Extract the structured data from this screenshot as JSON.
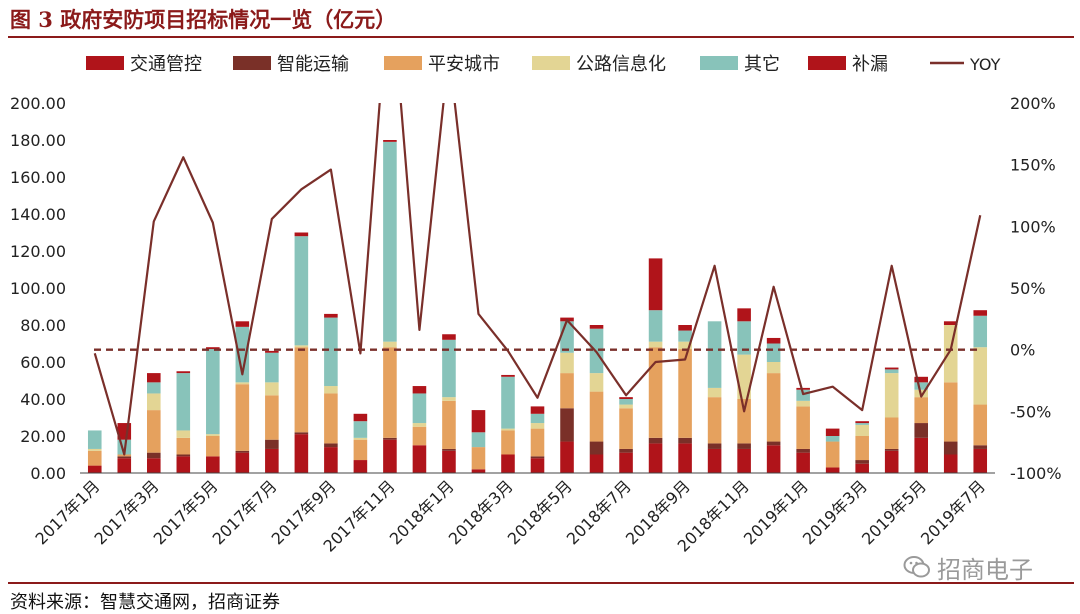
{
  "title": "图 3  政府安防项目招标情况一览（亿元）",
  "source": "资料来源：智慧交通网，招商证券",
  "watermark": {
    "text": "招商电子",
    "icon": "wechat-icon"
  },
  "colors": {
    "title": "#8B1A1A",
    "traffic": "#B0141A",
    "smart_transport": "#7A3028",
    "safe_city": "#E5A15E",
    "highway_it": "#E3D594",
    "other": "#88C3BA",
    "supplement": "#B0141A",
    "yoy": "#7A2F2A",
    "zero_line": "#7A2F2A"
  },
  "chart_data": {
    "type": "bar",
    "stacked": true,
    "title": "政府安防项目招标情况一览（亿元）",
    "legend_position": "top",
    "grid": false,
    "categories": [
      "2017年1月",
      "2017年2月",
      "2017年3月",
      "2017年4月",
      "2017年5月",
      "2017年6月",
      "2017年7月",
      "2017年8月",
      "2017年9月",
      "2017年10月",
      "2017年11月",
      "2017年12月",
      "2018年1月",
      "2018年2月",
      "2018年3月",
      "2018年4月",
      "2018年5月",
      "2018年6月",
      "2018年7月",
      "2018年8月",
      "2018年9月",
      "2018年10月",
      "2018年11月",
      "2018年12月",
      "2019年1月",
      "2019年2月",
      "2019年3月",
      "2019年4月",
      "2019年5月",
      "2019年6月",
      "2019年7月"
    ],
    "x_tick_labels": [
      "2017年1月",
      "2017年3月",
      "2017年5月",
      "2017年7月",
      "2017年9月",
      "2017年11月",
      "2018年1月",
      "2018年3月",
      "2018年5月",
      "2018年7月",
      "2018年9月",
      "2018年11月",
      "2019年1月",
      "2019年3月",
      "2019年5月",
      "2019年7月"
    ],
    "y_left": {
      "min": 0,
      "max": 200,
      "step": 20,
      "tick_labels": [
        "0.00",
        "20.00",
        "40.00",
        "60.00",
        "80.00",
        "100.00",
        "120.00",
        "140.00",
        "160.00",
        "180.00",
        "200.00"
      ]
    },
    "y_right": {
      "min": -100,
      "max": 200,
      "step": 50,
      "tick_labels": [
        "-100%",
        "-50%",
        "0%",
        "50%",
        "100%",
        "150%",
        "200%"
      ]
    },
    "series": [
      {
        "name": "交通管控",
        "values": [
          4,
          8,
          8,
          9,
          9,
          11,
          13,
          21,
          14,
          7,
          18,
          15,
          12,
          2,
          10,
          8,
          17,
          10,
          11,
          16,
          16,
          13,
          13,
          15,
          11,
          3,
          5,
          12,
          19,
          10,
          13
        ]
      },
      {
        "name": "智能运输",
        "values": [
          0,
          1,
          3,
          1,
          0,
          1,
          5,
          1,
          2,
          0,
          1,
          0,
          1,
          0,
          0,
          1,
          18,
          7,
          2,
          3,
          3,
          3,
          3,
          2,
          2,
          0,
          2,
          1,
          8,
          7,
          2
        ]
      },
      {
        "name": "平安城市",
        "values": [
          8,
          1,
          23,
          9,
          11,
          36,
          24,
          46,
          27,
          11,
          49,
          10,
          26,
          12,
          13,
          15,
          19,
          27,
          22,
          49,
          48,
          25,
          24,
          37,
          23,
          14,
          13,
          17,
          14,
          32,
          22
        ]
      },
      {
        "name": "公路信息化",
        "values": [
          1,
          0,
          9,
          4,
          1,
          1,
          7,
          1,
          4,
          1,
          3,
          2,
          2,
          0,
          1,
          3,
          11,
          10,
          2,
          3,
          4,
          5,
          24,
          6,
          3,
          0,
          6,
          24,
          4,
          31,
          31
        ]
      },
      {
        "name": "其它",
        "values": [
          10,
          8,
          6,
          31,
          46,
          30,
          16,
          59,
          37,
          9,
          108,
          16,
          31,
          8,
          28,
          5,
          17,
          24,
          3,
          17,
          6,
          36,
          18,
          10,
          6,
          3,
          1,
          2,
          4,
          0,
          17
        ]
      },
      {
        "name": "补漏",
        "values": [
          0,
          9,
          5,
          1,
          1,
          3,
          1,
          2,
          2,
          4,
          1,
          4,
          3,
          12,
          1,
          4,
          2,
          2,
          1,
          28,
          3,
          0,
          7,
          3,
          1,
          4,
          1,
          1,
          3,
          2,
          3
        ]
      },
      {
        "name": "YOY",
        "type": "line",
        "axis": "right",
        "values": [
          -3,
          -85,
          104,
          156,
          103,
          -20,
          106,
          130,
          146,
          -3,
          308,
          16,
          242,
          29,
          -1,
          -39,
          24,
          -2,
          -37,
          -10,
          -8,
          68,
          -50,
          51,
          -36,
          -30,
          -49,
          68,
          -38,
          0,
          109
        ]
      }
    ],
    "reference_line": {
      "axis": "right",
      "value": 0,
      "style": "dashed"
    }
  }
}
